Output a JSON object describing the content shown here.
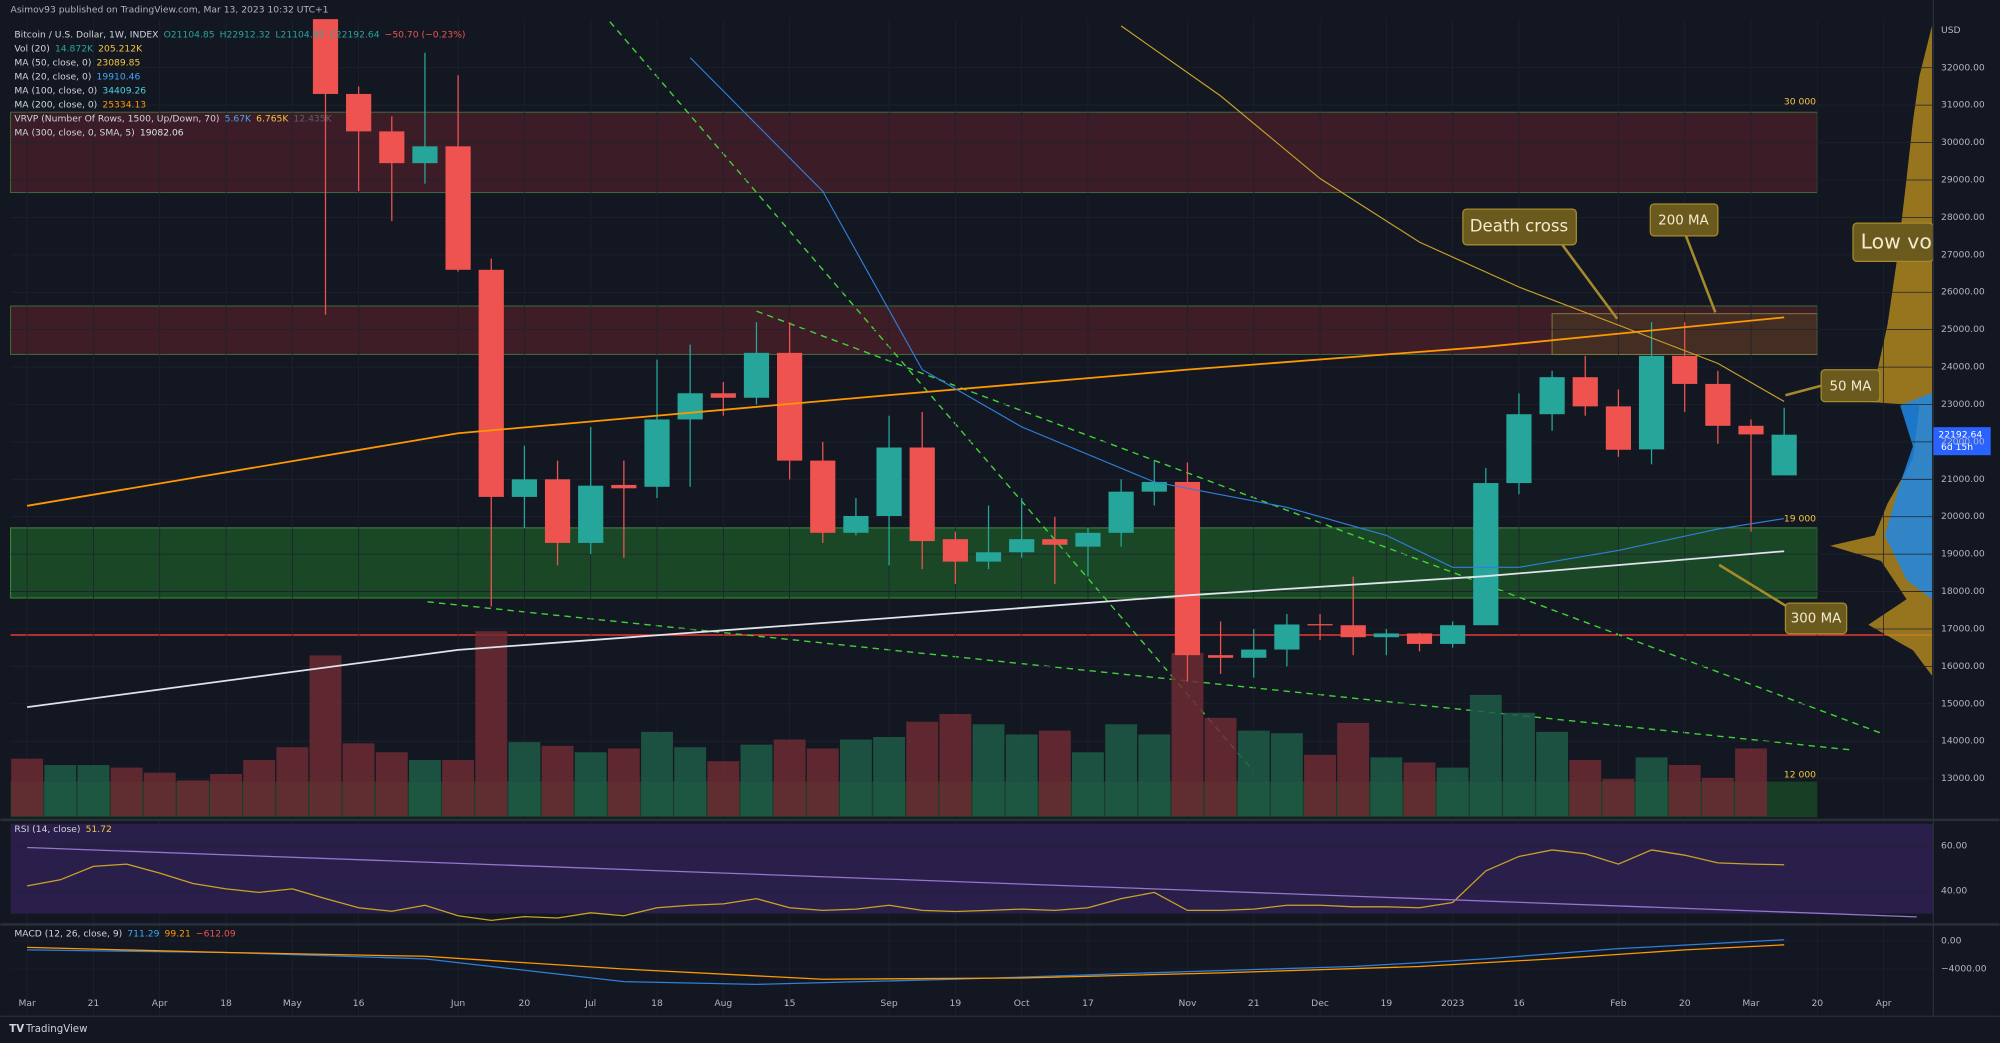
{
  "header": {
    "published": "Asimov93 published on TradingView.com, Mar 13, 2023 10:32 UTC+1",
    "footer": "TradingView",
    "currency": "USD"
  },
  "legend": [
    {
      "label": "Bitcoin / U.S. Dollar, 1W, INDEX",
      "values": [
        "O21104.85",
        "H22912.32",
        "L21104.85",
        "C22192.64",
        "−50.70 (−0.23%)"
      ],
      "colors": [
        "#26a69a",
        "#26a69a",
        "#26a69a",
        "#26a69a",
        "#ef5350"
      ]
    },
    {
      "label": "Vol (20)",
      "values": [
        "14.872K",
        "205.212K"
      ],
      "colors": [
        "#26a69a",
        "#f5c542"
      ]
    },
    {
      "label": "MA (50, close, 0)",
      "values": [
        "23089.85"
      ],
      "colors": [
        "#f5c542"
      ]
    },
    {
      "label": "MA (20, close, 0)",
      "values": [
        "19910.46"
      ],
      "colors": [
        "#42a5f5"
      ]
    },
    {
      "label": "MA (100, close, 0)",
      "values": [
        "34409.26"
      ],
      "colors": [
        "#4dd0e1"
      ]
    },
    {
      "label": "MA (200, close, 0)",
      "values": [
        "25334.13"
      ],
      "colors": [
        "#ff9800"
      ]
    },
    {
      "label": "VRVP (Number Of Rows, 1500, Up/Down, 70)",
      "values": [
        "5.67K",
        "6.765K",
        "12.435K"
      ],
      "colors": [
        "#42a5f5",
        "#f5c542",
        "#5d606b"
      ]
    },
    {
      "label": "MA (300, close, 0, SMA, 5)",
      "values": [
        "19082.06"
      ],
      "colors": [
        "#e0e3eb"
      ]
    }
  ],
  "annotations": {
    "death_cross": "Death cross",
    "ma200": "200 MA",
    "ma50": "50 MA",
    "ma300": "300 MA",
    "low_vol": "Low vol",
    "zone_30k": "30 000",
    "zone_19k": "19 000",
    "zone_12k": "12 000",
    "last_price": "22192.64",
    "countdown": "6d 15h"
  },
  "chart_data": [
    {
      "type": "candlestick",
      "x": [
        9,
        10,
        11,
        12,
        13,
        14,
        15,
        16,
        17,
        18,
        19,
        20,
        21,
        22,
        23,
        24,
        25,
        26,
        27,
        28,
        29,
        30,
        31,
        32,
        33,
        34,
        35,
        36,
        37,
        38,
        39,
        40,
        41,
        42,
        43,
        44,
        45,
        46,
        47,
        48,
        49,
        50,
        51,
        52,
        53
      ],
      "open": [
        34000,
        31300,
        30300,
        29450,
        29900,
        26600,
        20530,
        21000,
        19300,
        20850,
        20800,
        22600,
        23300,
        23180,
        24380,
        21500,
        19570,
        20020,
        21850,
        19400,
        18800,
        19050,
        19400,
        19200,
        19570,
        20670,
        20930,
        16300,
        16230,
        16450,
        17130,
        17100,
        16780,
        16880,
        16600,
        17100,
        20900,
        22740,
        23730,
        22950,
        21800,
        24300,
        23550,
        22430,
        21104.85
      ],
      "high": [
        34500,
        31500,
        30700,
        32400,
        31800,
        26900,
        21900,
        21500,
        22400,
        21500,
        24200,
        24600,
        23600,
        25200,
        25200,
        22000,
        20500,
        22700,
        22800,
        19600,
        20300,
        20500,
        20000,
        19700,
        21000,
        21500,
        21450,
        17200,
        17000,
        17400,
        17400,
        18400,
        17000,
        16900,
        17200,
        21300,
        23300,
        23900,
        24300,
        23400,
        25200,
        25200,
        23900,
        22600,
        22912.32
      ],
      "low": [
        25400,
        28700,
        27900,
        28900,
        26550,
        17600,
        19700,
        18700,
        19000,
        18900,
        20500,
        20800,
        22700,
        23000,
        21000,
        19300,
        19500,
        18700,
        18600,
        18200,
        18600,
        18900,
        18200,
        18400,
        19200,
        20300,
        15600,
        15800,
        15700,
        16000,
        16700,
        16300,
        16300,
        16400,
        16500,
        17100,
        20600,
        22300,
        22700,
        21600,
        21400,
        22800,
        21950,
        19600,
        21104.85
      ],
      "close": [
        31300,
        30300,
        29450,
        29900,
        26600,
        20530,
        21000,
        19300,
        20830,
        20760,
        22600,
        23300,
        23180,
        24380,
        21500,
        19570,
        20020,
        21850,
        19350,
        18800,
        19050,
        19400,
        19250,
        19570,
        20670,
        20930,
        16300,
        16230,
        16450,
        17120,
        17100,
        16780,
        16880,
        16600,
        17100,
        20900,
        22740,
        23730,
        22950,
        21790,
        24300,
        23550,
        22430,
        22200,
        22192.64
      ],
      "up_color": "#26a69a",
      "down_color": "#ef5350",
      "xlim": [
        -0.5,
        57.5
      ],
      "xticks": [
        {
          "value": 0,
          "label": "Mar"
        },
        {
          "value": 2,
          "label": "21"
        },
        {
          "value": 4,
          "label": "Apr"
        },
        {
          "value": 6,
          "label": "18"
        },
        {
          "value": 8,
          "label": "May"
        },
        {
          "value": 10,
          "label": "16"
        },
        {
          "value": 13,
          "label": "Jun"
        },
        {
          "value": 15,
          "label": "20"
        },
        {
          "value": 17,
          "label": "Jul"
        },
        {
          "value": 19,
          "label": "18"
        },
        {
          "value": 21,
          "label": "Aug"
        },
        {
          "value": 23,
          "label": "15"
        },
        {
          "value": 26,
          "label": "Sep"
        },
        {
          "value": 28,
          "label": "19"
        },
        {
          "value": 30,
          "label": "Oct"
        },
        {
          "value": 32,
          "label": "17"
        },
        {
          "value": 35,
          "label": "Nov"
        },
        {
          "value": 37,
          "label": "21"
        },
        {
          "value": 39,
          "label": "Dec"
        },
        {
          "value": 41,
          "label": "19"
        },
        {
          "value": 43,
          "label": "2023"
        },
        {
          "value": 45,
          "label": "16"
        },
        {
          "value": 48,
          "label": "Feb"
        },
        {
          "value": 50,
          "label": "20"
        },
        {
          "value": 52,
          "label": "Mar"
        },
        {
          "value": 54,
          "label": "20"
        },
        {
          "value": 56,
          "label": "Apr"
        }
      ],
      "ylim": [
        12000,
        33300
      ],
      "yticks": [
        {
          "value": 13000,
          "label": "13000.00"
        },
        {
          "value": 14000,
          "label": "14000.00"
        },
        {
          "value": 15000,
          "label": "15000.00"
        },
        {
          "value": 16000,
          "label": "16000.00"
        },
        {
          "value": 17000,
          "label": "17000.00"
        },
        {
          "value": 18000,
          "label": "18000.00"
        },
        {
          "value": 19000,
          "label": "19000.00"
        },
        {
          "value": 20000,
          "label": "20000.00"
        },
        {
          "value": 21000,
          "label": "21000.00"
        },
        {
          "value": 22000,
          "label": "22000.00"
        },
        {
          "value": 23000,
          "label": "23000.00"
        },
        {
          "value": 24000,
          "label": "24000.00"
        },
        {
          "value": 25000,
          "label": "25000.00"
        },
        {
          "value": 26000,
          "label": "26000.00"
        },
        {
          "value": 27000,
          "label": "27000.00"
        },
        {
          "value": 28000,
          "label": "28000.00"
        },
        {
          "value": 29000,
          "label": "29000.00"
        },
        {
          "value": 30000,
          "label": "30000.00"
        },
        {
          "value": 31000,
          "label": "31000.00"
        },
        {
          "value": 32000,
          "label": "32000.00"
        }
      ],
      "lines": [
        {
          "color": "#ff9800",
          "width": 1.4,
          "x": [
            0,
            13,
            26,
            35,
            44,
            53
          ],
          "values": [
            20290,
            22230,
            23250,
            23930,
            24540,
            25330
          ]
        },
        {
          "color": "#e0e3eb",
          "width": 1.4,
          "x": [
            0,
            13,
            26,
            35,
            44,
            53
          ],
          "values": [
            14910,
            16440,
            17290,
            17900,
            18410,
            19080
          ]
        },
        {
          "color": "#2f7fd8",
          "width": 0.9,
          "x": [
            20,
            24,
            27,
            30,
            34,
            38,
            41,
            43,
            45,
            48,
            51,
            53
          ],
          "values": [
            32270,
            28700,
            23930,
            22400,
            20930,
            20250,
            19500,
            18650,
            18650,
            19100,
            19670,
            19950
          ]
        },
        {
          "color": "#c9a227",
          "width": 0.9,
          "x": [
            33,
            36,
            39,
            42,
            45,
            48,
            51,
            53
          ],
          "values": [
            33120,
            31250,
            29040,
            27340,
            26140,
            25120,
            24100,
            23080
          ]
        }
      ],
      "volume": {
        "x": [
          0,
          1,
          2,
          3,
          4,
          5,
          6,
          7,
          8,
          9,
          10,
          11,
          12,
          13,
          14,
          15,
          16,
          17,
          18,
          19,
          20,
          21,
          22,
          23,
          24,
          25,
          26,
          27,
          28,
          29,
          30,
          31,
          32,
          33,
          34,
          35,
          36,
          37,
          38,
          39,
          40,
          41,
          42,
          43,
          44,
          45,
          46,
          47,
          48,
          49,
          50,
          51,
          52
        ],
        "values": [
          45,
          40,
          40,
          38,
          34,
          28,
          33,
          44,
          54,
          126,
          57,
          50,
          44,
          44,
          145,
          58,
          55,
          50,
          53,
          66,
          54,
          43,
          56,
          60,
          53,
          60,
          62,
          74,
          80,
          72,
          64,
          67,
          50,
          72,
          64,
          128,
          77,
          67,
          65,
          48,
          73,
          46,
          42,
          38,
          95,
          81,
          66,
          44,
          29,
          46,
          40,
          30,
          53
        ],
        "colors": [
          "#6d2b33",
          "#1f5a46",
          "#1f5a46",
          "#6d2b33",
          "#6d2b33",
          "#6d2b33",
          "#6d2b33",
          "#6d2b33",
          "#6d2b33",
          "#6d2b33",
          "#6d2b33",
          "#6d2b33",
          "#1f5a46",
          "#6d2b33",
          "#6d2b33",
          "#1f5a46",
          "#6d2b33",
          "#1f5a46",
          "#6d2b33",
          "#1f5a46",
          "#1f5a46",
          "#6d2b33",
          "#1f5a46",
          "#6d2b33",
          "#6d2b33",
          "#1f5a46",
          "#1f5a46",
          "#6d2b33",
          "#6d2b33",
          "#1f5a46",
          "#1f5a46",
          "#6d2b33",
          "#1f5a46",
          "#1f5a46",
          "#1f5a46",
          "#6d2b33",
          "#6d2b33",
          "#1f5a46",
          "#1f5a46",
          "#6d2b33",
          "#6d2b33",
          "#1f5a46",
          "#6d2b33",
          "#1f5a46",
          "#1f5a46",
          "#1f5a46",
          "#1f5a46",
          "#6d2b33",
          "#6d2b33",
          "#1f5a46",
          "#6d2b33",
          "#6d2b33",
          "#6d2b33"
        ],
        "ylim": [
          0,
          625
        ]
      }
    },
    {
      "type": "line",
      "title": "RSI (14, close)",
      "value_label": "51.72",
      "xlim": [
        -0.5,
        57.5
      ],
      "ylim": [
        28,
        70
      ],
      "band": [
        30,
        70
      ],
      "band_color": "#2a1f4a",
      "yticks": [
        {
          "value": 60,
          "label": "60.00"
        },
        {
          "value": 40,
          "label": "40.00"
        }
      ],
      "series": [
        {
          "color": "#c9a227",
          "x": [
            0,
            1,
            2,
            3,
            4,
            5,
            6,
            7,
            8,
            9,
            10,
            11,
            12,
            13,
            14,
            15,
            16,
            17,
            18,
            19,
            20,
            21,
            22,
            23,
            24,
            25,
            26,
            27,
            28,
            29,
            30,
            31,
            32,
            33,
            34,
            35,
            36,
            37,
            38,
            39,
            40,
            41,
            42,
            43,
            44,
            45,
            46,
            47,
            48,
            49,
            50,
            51,
            52,
            53
          ],
          "values": [
            42.3,
            45,
            51,
            52,
            48,
            43.4,
            41,
            39.4,
            41,
            36.6,
            32.6,
            31,
            33.7,
            29,
            27,
            28.6,
            28,
            30.3,
            29,
            32.6,
            33.7,
            34.3,
            36.6,
            32.6,
            31.4,
            32,
            33.7,
            31.4,
            30.9,
            31.4,
            32,
            31.4,
            32.6,
            36.6,
            39.4,
            31.4,
            31.4,
            32,
            33.7,
            33.7,
            33,
            33,
            32.6,
            34.9,
            49,
            55.4,
            58.3,
            56.6,
            52,
            58.3,
            56,
            52.6,
            52,
            51.72
          ]
        },
        {
          "color": "#9575cd",
          "x": [
            0,
            57
          ],
          "values": [
            59.4,
            28.5
          ]
        }
      ]
    },
    {
      "type": "line",
      "title": "MACD (12, 26, close, 9)",
      "value_labels": [
        "711.29",
        "99.21",
        "−612.09"
      ],
      "value_colors": [
        "#42a5f5",
        "#ff9800",
        "#ef5350"
      ],
      "xlim": [
        -0.5,
        57.5
      ],
      "ylim": [
        -8000,
        1820
      ],
      "yticks": [
        {
          "value": 0,
          "label": "0.00"
        },
        {
          "value": -4000,
          "label": "−4000.00"
        }
      ],
      "series": [
        {
          "color": "#2f7fd8",
          "x": [
            0,
            6,
            12,
            18,
            22,
            28,
            35,
            40,
            44,
            48,
            53
          ],
          "values": [
            -1270,
            -1640,
            -2550,
            -5800,
            -6180,
            -5450,
            -4360,
            -3640,
            -2550,
            -1090,
            180
          ]
        },
        {
          "color": "#ff9800",
          "x": [
            0,
            6,
            12,
            18,
            24,
            30,
            36,
            42,
            46,
            50,
            53
          ],
          "values": [
            -910,
            -1640,
            -2180,
            -4000,
            -5450,
            -5270,
            -4550,
            -3640,
            -2550,
            -1270,
            -550
          ]
        }
      ]
    }
  ]
}
